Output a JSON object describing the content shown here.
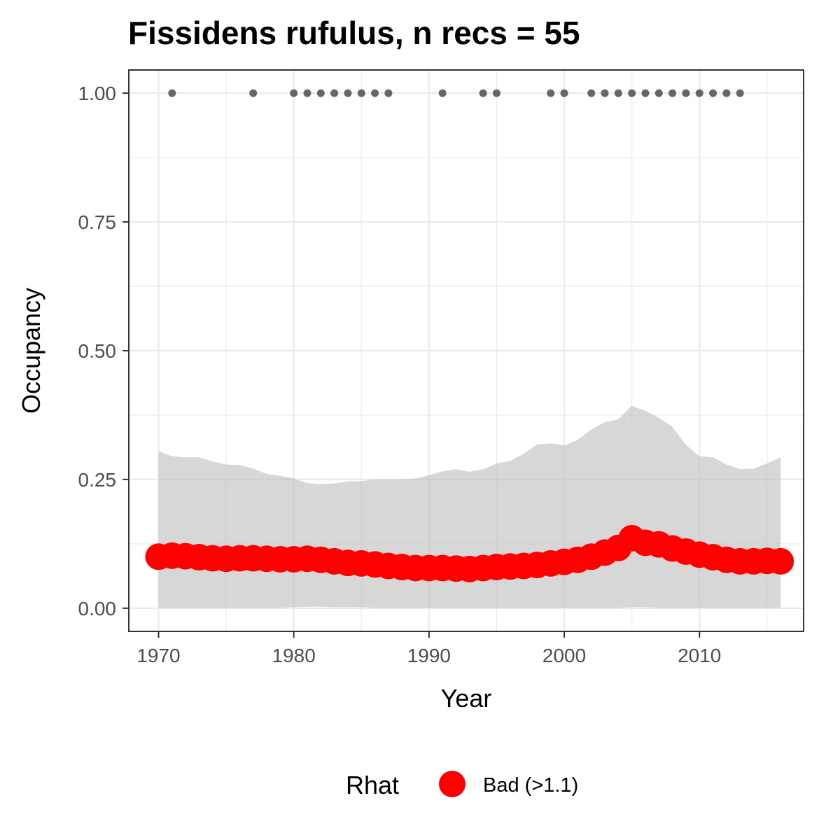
{
  "chart_data": {
    "type": "line",
    "title": "Fissidens rufulus, n recs = 55",
    "xlabel": "Year",
    "ylabel": "Occupancy",
    "xlim": [
      1967.8,
      2017.7
    ],
    "ylim": [
      -0.045,
      1.045
    ],
    "x_ticks": [
      1970,
      1980,
      1990,
      2000,
      2010
    ],
    "x_tick_labels": [
      "1970",
      "1980",
      "1990",
      "2000",
      "2010"
    ],
    "y_ticks": [
      0,
      0.25,
      0.5,
      0.75,
      1.0
    ],
    "y_tick_labels": [
      "0.00",
      "0.25",
      "0.50",
      "0.75",
      "1.00"
    ],
    "grid": true,
    "colors": {
      "points": "#ff0000",
      "ribbon": "#bebebe",
      "records": "#666666",
      "grid": "#ebebeb",
      "panel_border": "#333333"
    },
    "years": [
      1970,
      1971,
      1972,
      1973,
      1974,
      1975,
      1976,
      1977,
      1978,
      1979,
      1980,
      1981,
      1982,
      1983,
      1984,
      1985,
      1986,
      1987,
      1988,
      1989,
      1990,
      1991,
      1992,
      1993,
      1994,
      1995,
      1996,
      1997,
      1998,
      1999,
      2000,
      2001,
      2002,
      2003,
      2004,
      2005,
      2006,
      2007,
      2008,
      2009,
      2010,
      2011,
      2012,
      2013,
      2014,
      2015,
      2016
    ],
    "occupancy": [
      0.1,
      0.102,
      0.101,
      0.099,
      0.097,
      0.096,
      0.097,
      0.097,
      0.096,
      0.095,
      0.095,
      0.096,
      0.094,
      0.091,
      0.088,
      0.087,
      0.085,
      0.082,
      0.08,
      0.078,
      0.078,
      0.078,
      0.077,
      0.076,
      0.078,
      0.08,
      0.081,
      0.082,
      0.084,
      0.087,
      0.09,
      0.094,
      0.1,
      0.108,
      0.117,
      0.136,
      0.127,
      0.124,
      0.116,
      0.11,
      0.104,
      0.099,
      0.094,
      0.091,
      0.091,
      0.092,
      0.091
    ],
    "upper_ci": [
      0.305,
      0.295,
      0.293,
      0.293,
      0.285,
      0.279,
      0.278,
      0.271,
      0.261,
      0.257,
      0.252,
      0.243,
      0.241,
      0.242,
      0.246,
      0.247,
      0.25,
      0.25,
      0.25,
      0.252,
      0.258,
      0.266,
      0.27,
      0.265,
      0.27,
      0.281,
      0.286,
      0.3,
      0.318,
      0.32,
      0.316,
      0.327,
      0.347,
      0.361,
      0.367,
      0.393,
      0.383,
      0.37,
      0.352,
      0.317,
      0.295,
      0.293,
      0.279,
      0.27,
      0.271,
      0.281,
      0.293
    ],
    "lower_ci": [
      0.001,
      0.001,
      0.001,
      0.001,
      0.001,
      0.001,
      0.001,
      0.001,
      0.001,
      0.001,
      0.002,
      0.003,
      0.003,
      0.002,
      0.002,
      0.002,
      0.001,
      0.001,
      0.001,
      0.001,
      0.001,
      0.001,
      0.001,
      0.001,
      0.001,
      0.001,
      0.001,
      0.001,
      0.001,
      0.001,
      0.001,
      0.001,
      0.001,
      0.001,
      0.001,
      0.002,
      0.002,
      0.001,
      0.001,
      0.001,
      0.001,
      0.001,
      0.001,
      0.001,
      0.001,
      0.001,
      0.001
    ],
    "record_years": [
      1971,
      1977,
      1980,
      1981,
      1982,
      1983,
      1984,
      1985,
      1986,
      1987,
      1991,
      1994,
      1995,
      1999,
      2000,
      2002,
      2003,
      2004,
      2005,
      2006,
      2007,
      2008,
      2009,
      2010,
      2011,
      2012,
      2013
    ],
    "record_value": 1.0,
    "legend": {
      "title": "Rhat",
      "entries": [
        {
          "label": "Bad (>1.1)",
          "color": "#ff0000"
        }
      ],
      "position": "bottom"
    }
  }
}
